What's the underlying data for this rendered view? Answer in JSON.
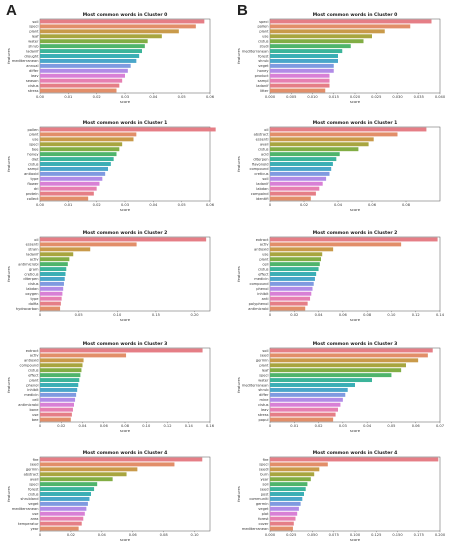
{
  "panels": {
    "left": "A",
    "right": "B"
  },
  "colors": [
    "#e57e86",
    "#e28e69",
    "#c99a4a",
    "#a8a53f",
    "#82ad44",
    "#4fb46b",
    "#3cb49a",
    "#3aaeb5",
    "#4aa6c9",
    "#7f9ae0",
    "#b18be6",
    "#d880d6",
    "#e67fb1"
  ],
  "chart_data": [
    {
      "type": "bar",
      "orientation": "horizontal",
      "title": "Most common words in Cluster 0",
      "xlabel": "score",
      "ylabel": "features",
      "xlim": [
        0,
        0.06
      ],
      "xticks": [
        0,
        0.01,
        0.02,
        0.03,
        0.04,
        0.05,
        0.06
      ],
      "xtick_labels": [
        "0.00",
        "0.01",
        "0.02",
        "0.03",
        "0.04",
        "0.05",
        "0.06"
      ],
      "categories": [
        "soil",
        "speci",
        "plant",
        "leaf",
        "water",
        "shrub",
        "ladanif",
        "drought",
        "mediterranean",
        "annual",
        "differ",
        "leav",
        "season",
        "cistus",
        "stress"
      ],
      "values": [
        0.058,
        0.055,
        0.049,
        0.043,
        0.038,
        0.037,
        0.036,
        0.035,
        0.034,
        0.032,
        0.031,
        0.03,
        0.029,
        0.028,
        0.027
      ]
    },
    {
      "type": "bar",
      "orientation": "horizontal",
      "title": "Most common words in Cluster 1",
      "xlabel": "score",
      "ylabel": "features",
      "xlim": [
        0,
        0.06
      ],
      "xticks": [
        0,
        0.01,
        0.02,
        0.03,
        0.04,
        0.05,
        0.06
      ],
      "xtick_labels": [
        "0.00",
        "0.01",
        "0.02",
        "0.03",
        "0.04",
        "0.05",
        "0.06"
      ],
      "categories": [
        "pollen",
        "plant",
        "use",
        "speci",
        "bee",
        "honey",
        "diet",
        "cistus",
        "sampl",
        "antioxid",
        "type",
        "flower",
        "dri",
        "protein",
        "collect"
      ],
      "values": [
        0.062,
        0.034,
        0.033,
        0.029,
        0.028,
        0.027,
        0.026,
        0.025,
        0.024,
        0.023,
        0.022,
        0.021,
        0.02,
        0.019,
        0.017
      ]
    },
    {
      "type": "bar",
      "orientation": "horizontal",
      "title": "Most common words in Cluster 2",
      "xlabel": "score",
      "ylabel": "features",
      "xlim": [
        0,
        0.22
      ],
      "xticks": [
        0,
        0.05,
        0.1,
        0.15,
        0.2
      ],
      "xtick_labels": [
        "0",
        "0.05",
        "0.10",
        "0.15",
        "0.20"
      ],
      "categories": [
        "oil",
        "essenti",
        "strain",
        "ladanif",
        "activ",
        "antimicrobi",
        "gram",
        "creticus",
        "diterpen",
        "cistus",
        "labdan",
        "oxygen",
        "type",
        "dolfia",
        "hydrocarbon"
      ],
      "values": [
        0.215,
        0.125,
        0.065,
        0.043,
        0.038,
        0.036,
        0.034,
        0.033,
        0.032,
        0.031,
        0.03,
        0.029,
        0.028,
        0.027,
        0.026
      ]
    },
    {
      "type": "bar",
      "orientation": "horizontal",
      "title": "Most common words in Cluster 3",
      "xlabel": "score",
      "ylabel": "features",
      "xlim": [
        0,
        0.16
      ],
      "xticks": [
        0,
        0.02,
        0.04,
        0.06,
        0.08,
        0.1,
        0.12,
        0.14,
        0.16
      ],
      "xtick_labels": [
        "0",
        "0.02",
        "0.04",
        "0.06",
        "0.08",
        "0.10",
        "0.12",
        "0.14",
        "0.16"
      ],
      "categories": [
        "extract",
        "activ",
        "antioxid",
        "compound",
        "cistus",
        "effect",
        "plant",
        "phenol",
        "inhibit",
        "medicin",
        "cell",
        "antimicrobi",
        "bone",
        "use",
        "bee"
      ],
      "values": [
        0.153,
        0.081,
        0.041,
        0.04,
        0.039,
        0.038,
        0.037,
        0.036,
        0.035,
        0.034,
        0.033,
        0.032,
        0.031,
        0.03,
        0.029
      ]
    },
    {
      "type": "bar",
      "orientation": "horizontal",
      "title": "Most common words in Cluster 4",
      "xlabel": "score",
      "ylabel": "features",
      "xlim": [
        0,
        0.11
      ],
      "xticks": [
        0,
        0.02,
        0.04,
        0.06,
        0.08,
        0.1
      ],
      "xtick_labels": [
        "0",
        "0.02",
        "0.04",
        "0.06",
        "0.08",
        "0.10"
      ],
      "categories": [
        "fire",
        "seed",
        "germin",
        "abstract",
        "avail",
        "speci",
        "forest",
        "cistus",
        "shrubland",
        "veget",
        "mediterranean",
        "use",
        "area",
        "temperatur",
        "year"
      ],
      "values": [
        0.105,
        0.087,
        0.063,
        0.056,
        0.047,
        0.037,
        0.035,
        0.033,
        0.032,
        0.031,
        0.03,
        0.029,
        0.028,
        0.027,
        0.025
      ]
    },
    {
      "type": "bar",
      "orientation": "horizontal",
      "title": "Most common words in Cluster 0",
      "xlabel": "score",
      "ylabel": "features",
      "xlim": [
        0,
        0.04
      ],
      "xticks": [
        0,
        0.005,
        0.01,
        0.015,
        0.02,
        0.025,
        0.03,
        0.035,
        0.04
      ],
      "xtick_labels": [
        "0.000",
        "0.005",
        "0.010",
        "0.015",
        "0.020",
        "0.025",
        "0.030",
        "0.035",
        "0.040"
      ],
      "categories": [
        "speci",
        "pollen",
        "plant",
        "use",
        "cistus",
        "studi",
        "mediterranean",
        "forest",
        "shrub",
        "veget",
        "honey",
        "product",
        "sampl",
        "ladanif",
        "litter"
      ],
      "values": [
        0.038,
        0.033,
        0.027,
        0.024,
        0.022,
        0.019,
        0.017,
        0.016,
        0.016,
        0.015,
        0.015,
        0.014,
        0.014,
        0.014,
        0.013
      ]
    },
    {
      "type": "bar",
      "orientation": "horizontal",
      "title": "Most common words in Cluster 1",
      "xlabel": "score",
      "ylabel": "features",
      "xlim": [
        0,
        0.1
      ],
      "xticks": [
        0,
        0.02,
        0.04,
        0.06,
        0.08
      ],
      "xtick_labels": [
        "0",
        "0.02",
        "0.04",
        "0.06",
        "0.08"
      ],
      "categories": [
        "oil",
        "abstract",
        "essenti",
        "avail",
        "cistus",
        "acid",
        "diterpen",
        "flavonoid",
        "compound",
        "creticus",
        "soil",
        "ladanif",
        "labdan",
        "compoind",
        "identifi"
      ],
      "values": [
        0.092,
        0.075,
        0.061,
        0.058,
        0.052,
        0.041,
        0.039,
        0.037,
        0.036,
        0.035,
        0.033,
        0.031,
        0.029,
        0.027,
        0.024
      ]
    },
    {
      "type": "bar",
      "orientation": "horizontal",
      "title": "Most common words in Cluster 2",
      "xlabel": "score",
      "ylabel": "features",
      "xlim": [
        0,
        0.14
      ],
      "xticks": [
        0,
        0.02,
        0.04,
        0.06,
        0.08,
        0.1,
        0.12,
        0.14
      ],
      "xtick_labels": [
        "0",
        "0.02",
        "0.04",
        "0.06",
        "0.08",
        "0.10",
        "0.12",
        "0.14"
      ],
      "categories": [
        "extract",
        "activ",
        "antioxid",
        "use",
        "plant",
        "cell",
        "cistus",
        "effect",
        "medicin",
        "compound",
        "phenol",
        "inhibit",
        "anti",
        "polyphenol",
        "antimicrobi"
      ],
      "values": [
        0.138,
        0.108,
        0.052,
        0.043,
        0.042,
        0.041,
        0.04,
        0.038,
        0.037,
        0.036,
        0.035,
        0.034,
        0.033,
        0.031,
        0.029
      ]
    },
    {
      "type": "bar",
      "orientation": "horizontal",
      "title": "Most common words in Cluster 3",
      "xlabel": "score",
      "ylabel": "features",
      "xlim": [
        0,
        0.07
      ],
      "xticks": [
        0,
        0.01,
        0.02,
        0.03,
        0.04,
        0.05,
        0.06,
        0.07
      ],
      "xtick_labels": [
        "0",
        "0.01",
        "0.02",
        "0.03",
        "0.04",
        "0.05",
        "0.06",
        "0.07"
      ],
      "categories": [
        "soil",
        "seed",
        "germin",
        "plant",
        "leaf",
        "speci",
        "water",
        "mediterranean",
        "shrub",
        "differ",
        "mine",
        "cistus",
        "leav",
        "stress",
        "popul"
      ],
      "values": [
        0.067,
        0.065,
        0.061,
        0.056,
        0.054,
        0.05,
        0.042,
        0.035,
        0.032,
        0.031,
        0.03,
        0.029,
        0.028,
        0.027,
        0.026
      ]
    },
    {
      "type": "bar",
      "orientation": "horizontal",
      "title": "Most common words in Cluster 4",
      "xlabel": "score",
      "ylabel": "features",
      "xlim": [
        0,
        0.2
      ],
      "xticks": [
        0,
        0.025,
        0.05,
        0.075,
        0.1,
        0.125,
        0.15,
        0.175,
        0.2
      ],
      "xtick_labels": [
        "0.000",
        "0.025",
        "0.050",
        "0.075",
        "0.100",
        "0.125",
        "0.150",
        "0.175",
        "0.200"
      ],
      "categories": [
        "fire",
        "speci",
        "seedl",
        "burn",
        "year",
        "soil",
        "seed",
        "post",
        "communiti",
        "germin",
        "veget",
        "plot",
        "forest",
        "cover",
        "mediterranean"
      ],
      "values": [
        0.198,
        0.068,
        0.058,
        0.052,
        0.048,
        0.044,
        0.042,
        0.04,
        0.038,
        0.036,
        0.034,
        0.032,
        0.03,
        0.028,
        0.027
      ]
    }
  ]
}
